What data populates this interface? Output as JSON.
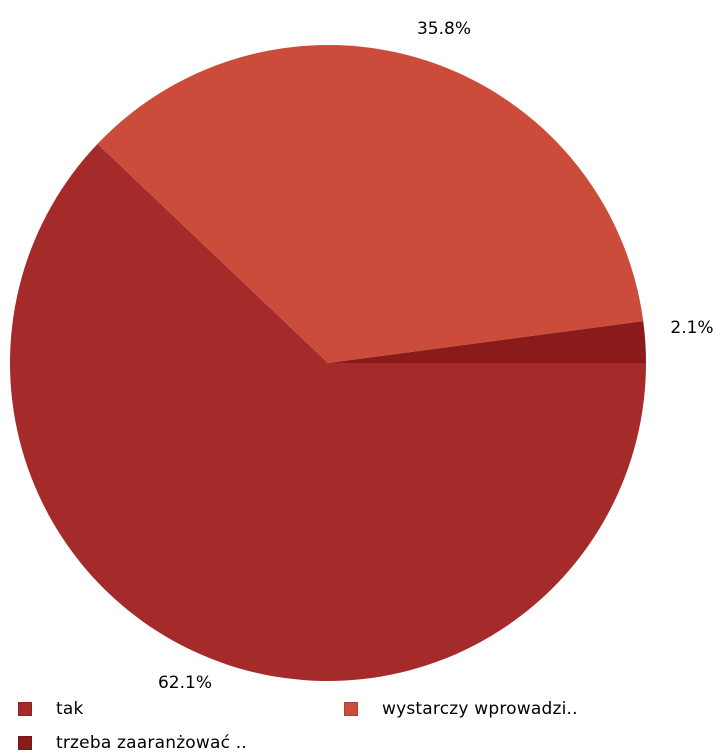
{
  "chart_data": {
    "type": "pie",
    "slices": [
      {
        "label": "tak",
        "value": 62.1,
        "value_label": "62.1%",
        "color": "#a52a2a"
      },
      {
        "label": "wystarczy wprowadzi..",
        "value": 35.8,
        "value_label": "35.8%",
        "color": "#cc4c3b"
      },
      {
        "label": "trzeba zaaranżować ..",
        "value": 2.1,
        "value_label": "2.1%",
        "color": "#8b1a1a"
      }
    ],
    "legend_position": "bottom"
  }
}
